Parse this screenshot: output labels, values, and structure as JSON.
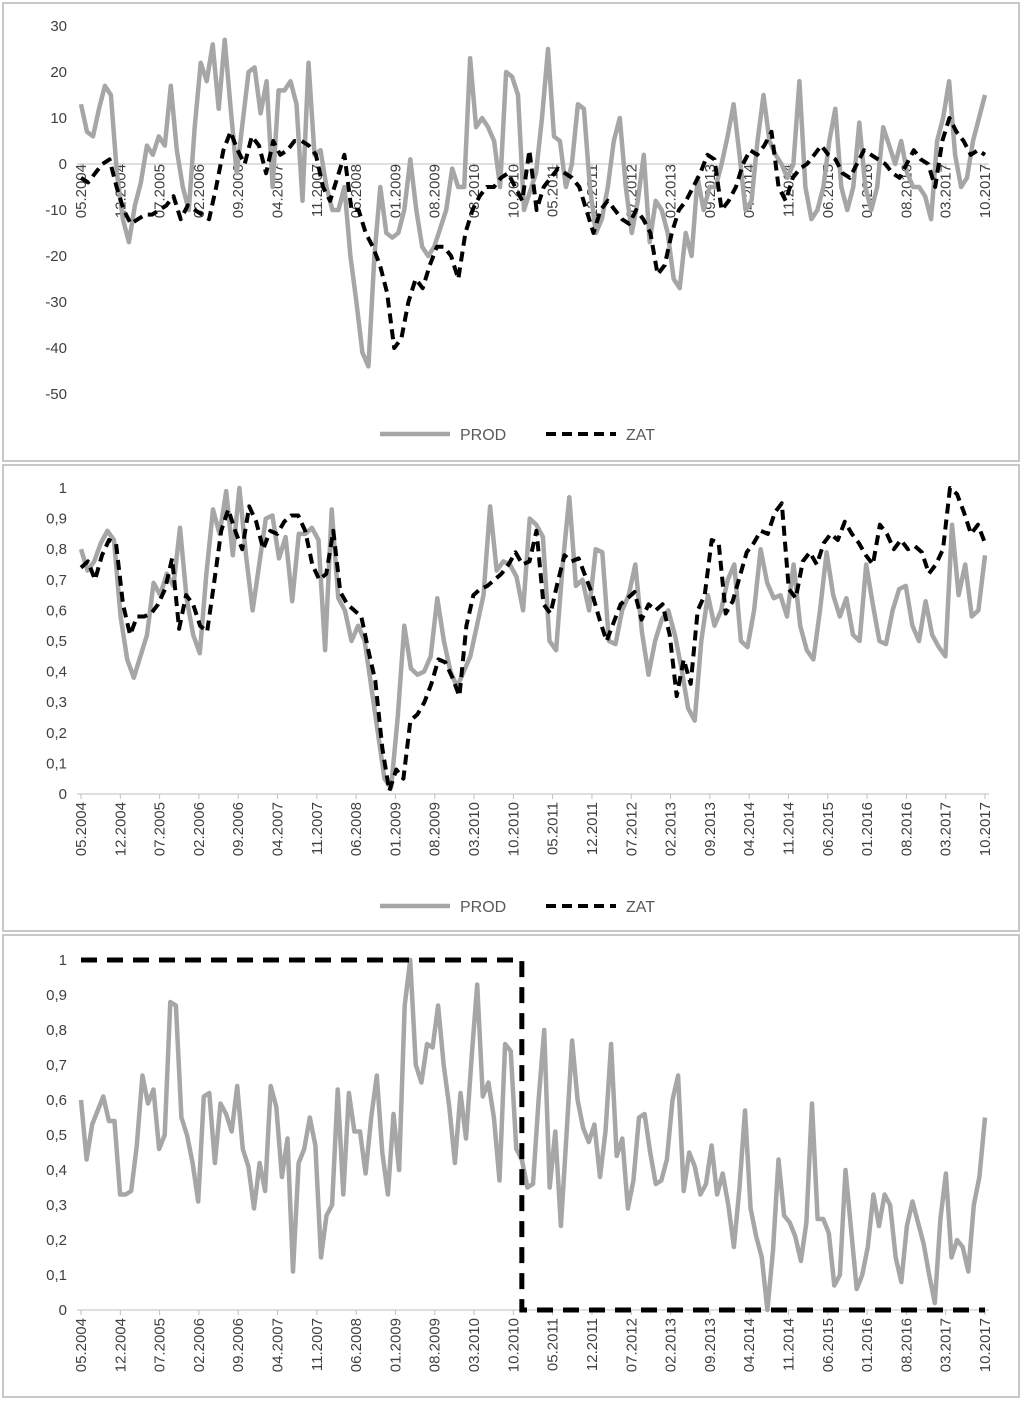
{
  "chart_data": [
    {
      "type": "line",
      "title": "",
      "xlabel": "",
      "ylabel": "",
      "ylim": [
        -50,
        30
      ],
      "yticks": [
        "30",
        "20",
        "10",
        "0",
        "-10",
        "-20",
        "-30",
        "-40",
        "-50"
      ],
      "yvalues": [
        30,
        20,
        10,
        0,
        -10,
        -20,
        -30,
        -40,
        -50
      ],
      "xticks": [
        "05.2004",
        "12.2004",
        "07.2005",
        "02.2006",
        "09.2006",
        "04.2007",
        "11.2007",
        "06.2008",
        "01.2009",
        "08.2009",
        "03.2010",
        "10.2010",
        "05.2011",
        "12.2011",
        "07.2012",
        "02.2013",
        "09.2013",
        "04.2014",
        "11.2014",
        "06.2015",
        "01.2016",
        "08.2016",
        "03.2017",
        "10.2017"
      ],
      "legend": [
        "PROD",
        "ZAT"
      ],
      "legend_position": "bottom",
      "series": [
        {
          "name": "PROD",
          "values": [
            13,
            7,
            6,
            12,
            17,
            15,
            -2,
            -12,
            -17,
            -9,
            -4,
            4,
            2,
            6,
            4,
            17,
            3,
            -5,
            -10,
            8,
            22,
            18,
            26,
            12,
            27,
            12,
            -2,
            9,
            20,
            21,
            11,
            18,
            -5,
            16,
            16,
            18,
            13,
            -8,
            22,
            2,
            3,
            -5,
            -10,
            -10,
            -5,
            -20,
            -30,
            -41,
            -44,
            -20,
            -5,
            -15,
            -16,
            -15,
            -10,
            1,
            -10,
            -18,
            -20,
            -18,
            -14,
            -10,
            -1,
            -5,
            -5,
            23,
            8,
            10,
            8,
            5,
            -5,
            20,
            19,
            15,
            -10,
            -6,
            -2,
            10,
            25,
            6,
            5,
            -5,
            0,
            13,
            12,
            -5,
            -15,
            -12,
            -5,
            5,
            10,
            -5,
            -15,
            -8,
            2,
            -17,
            -8,
            -10,
            -15,
            -25,
            -27,
            -15,
            -20,
            -3,
            -10,
            -5,
            -5,
            0,
            6,
            13,
            2,
            -10,
            -8,
            5,
            15,
            5,
            2,
            0,
            -3,
            0,
            18,
            -5,
            -12,
            -10,
            -5,
            5,
            12,
            -5,
            -10,
            -5,
            9,
            -5,
            -10,
            -5,
            8,
            4,
            0,
            5,
            -2,
            -5,
            -5,
            -7,
            -12,
            5,
            10,
            18,
            2,
            -5,
            -3,
            5,
            10,
            15
          ]
        },
        {
          "name": "ZAT",
          "values": [
            -3,
            -4,
            -2,
            0,
            1,
            -5,
            -10,
            -13,
            -12,
            -11,
            -11,
            -10,
            -9,
            -7,
            -12,
            -9,
            -10,
            -11,
            -12,
            -5,
            3,
            7,
            3,
            0,
            6,
            4,
            -2,
            5,
            2,
            3,
            5,
            5,
            4,
            2,
            -5,
            -8,
            -3,
            2,
            -10,
            -10,
            -15,
            -18,
            -22,
            -28,
            -40,
            -38,
            -30,
            -25,
            -27,
            -22,
            -18,
            -18,
            -20,
            -25,
            -15,
            -10,
            -7,
            -5,
            -5,
            -3,
            -2,
            -5,
            -8,
            3,
            -10,
            -5,
            -3,
            -1,
            -2,
            -3,
            -5,
            -10,
            -15,
            -10,
            -8,
            -10,
            -12,
            -13,
            -10,
            -12,
            -15,
            -24,
            -22,
            -15,
            -10,
            -8,
            -5,
            -2,
            2,
            1,
            -10,
            -8,
            -5,
            0,
            3,
            2,
            4,
            7,
            -5,
            -8,
            -3,
            -1,
            0,
            2,
            4,
            2,
            1,
            -2,
            -3,
            0,
            3,
            2,
            1,
            0,
            -2,
            -3,
            0,
            3,
            1,
            0,
            -5,
            5,
            10,
            7,
            5,
            2,
            3,
            2
          ]
        }
      ]
    },
    {
      "type": "line",
      "title": "",
      "xlabel": "",
      "ylabel": "",
      "ylim": [
        0,
        1
      ],
      "yticks": [
        "1",
        "0,9",
        "0,8",
        "0,7",
        "0,6",
        "0,5",
        "0,4",
        "0,3",
        "0,2",
        "0,1",
        "0"
      ],
      "yvalues": [
        1,
        0.9,
        0.8,
        0.7,
        0.6,
        0.5,
        0.4,
        0.3,
        0.2,
        0.1,
        0
      ],
      "xticks": [
        "05.2004",
        "12.2004",
        "07.2005",
        "02.2006",
        "09.2006",
        "04.2007",
        "11.2007",
        "06.2008",
        "01.2009",
        "08.2009",
        "03.2010",
        "10.2010",
        "05.2011",
        "12.2011",
        "07.2012",
        "02.2013",
        "09.2013",
        "04.2014",
        "11.2014",
        "06.2015",
        "01.2016",
        "08.2016",
        "03.2017",
        "10.2017"
      ],
      "legend": [
        "PROD",
        "ZAT"
      ],
      "legend_position": "bottom",
      "series": [
        {
          "name": "PROD",
          "values": [
            0.8,
            0.73,
            0.76,
            0.82,
            0.86,
            0.83,
            0.58,
            0.44,
            0.38,
            0.45,
            0.52,
            0.69,
            0.65,
            0.72,
            0.68,
            0.87,
            0.64,
            0.52,
            0.46,
            0.72,
            0.93,
            0.85,
            0.99,
            0.78,
            1.0,
            0.78,
            0.6,
            0.75,
            0.9,
            0.91,
            0.77,
            0.84,
            0.63,
            0.85,
            0.85,
            0.87,
            0.83,
            0.47,
            0.93,
            0.64,
            0.6,
            0.5,
            0.55,
            0.5,
            0.35,
            0.2,
            0.05,
            0.02,
            0.25,
            0.55,
            0.41,
            0.39,
            0.4,
            0.45,
            0.64,
            0.5,
            0.4,
            0.35,
            0.4,
            0.45,
            0.55,
            0.65,
            0.94,
            0.73,
            0.76,
            0.75,
            0.71,
            0.6,
            0.9,
            0.88,
            0.84,
            0.5,
            0.47,
            0.75,
            0.97,
            0.68,
            0.7,
            0.6,
            0.8,
            0.79,
            0.5,
            0.49,
            0.6,
            0.65,
            0.75,
            0.53,
            0.39,
            0.5,
            0.57,
            0.6,
            0.52,
            0.41,
            0.28,
            0.24,
            0.5,
            0.65,
            0.55,
            0.6,
            0.7,
            0.75,
            0.5,
            0.48,
            0.6,
            0.8,
            0.69,
            0.64,
            0.65,
            0.58,
            0.75,
            0.55,
            0.47,
            0.44,
            0.6,
            0.79,
            0.65,
            0.58,
            0.64,
            0.52,
            0.5,
            0.75,
            0.62,
            0.5,
            0.49,
            0.6,
            0.67,
            0.68,
            0.55,
            0.5,
            0.63,
            0.52,
            0.48,
            0.45,
            0.88,
            0.65,
            0.75,
            0.58,
            0.6,
            0.78
          ]
        },
        {
          "name": "ZAT",
          "values": [
            0.74,
            0.76,
            0.7,
            0.78,
            0.83,
            0.82,
            0.62,
            0.52,
            0.58,
            0.58,
            0.59,
            0.62,
            0.67,
            0.77,
            0.54,
            0.65,
            0.62,
            0.55,
            0.53,
            0.69,
            0.86,
            0.93,
            0.86,
            0.8,
            0.94,
            0.89,
            0.8,
            0.86,
            0.85,
            0.89,
            0.91,
            0.91,
            0.86,
            0.75,
            0.7,
            0.72,
            0.86,
            0.66,
            0.62,
            0.6,
            0.58,
            0.47,
            0.37,
            0.15,
            0.01,
            0.08,
            0.05,
            0.24,
            0.26,
            0.3,
            0.36,
            0.44,
            0.43,
            0.38,
            0.32,
            0.55,
            0.65,
            0.67,
            0.68,
            0.7,
            0.72,
            0.75,
            0.79,
            0.75,
            0.76,
            0.86,
            0.62,
            0.59,
            0.69,
            0.78,
            0.76,
            0.77,
            0.71,
            0.65,
            0.57,
            0.5,
            0.56,
            0.62,
            0.64,
            0.66,
            0.57,
            0.62,
            0.6,
            0.62,
            0.52,
            0.32,
            0.44,
            0.36,
            0.6,
            0.65,
            0.83,
            0.82,
            0.59,
            0.63,
            0.71,
            0.79,
            0.82,
            0.86,
            0.85,
            0.92,
            0.95,
            0.67,
            0.64,
            0.76,
            0.79,
            0.75,
            0.82,
            0.85,
            0.83,
            0.89,
            0.85,
            0.82,
            0.78,
            0.75,
            0.88,
            0.85,
            0.8,
            0.83,
            0.8,
            0.81,
            0.79,
            0.72,
            0.75,
            0.8,
            1.0,
            0.98,
            0.92,
            0.85,
            0.88,
            0.82
          ]
        }
      ]
    },
    {
      "type": "line",
      "title": "",
      "xlabel": "",
      "ylabel": "",
      "ylim": [
        0,
        1
      ],
      "yticks": [
        "1",
        "0,9",
        "0,8",
        "0,7",
        "0,6",
        "0,5",
        "0,4",
        "0,3",
        "0,2",
        "0,1",
        "0"
      ],
      "yvalues": [
        1,
        0.9,
        0.8,
        0.7,
        0.6,
        0.5,
        0.4,
        0.3,
        0.2,
        0.1,
        0
      ],
      "xticks": [
        "05.2004",
        "12.2004",
        "07.2005",
        "02.2006",
        "09.2006",
        "04.2007",
        "11.2007",
        "06.2008",
        "01.2009",
        "08.2009",
        "03.2010",
        "10.2010",
        "05.2011",
        "12.2011",
        "07.2012",
        "02.2013",
        "09.2013",
        "04.2014",
        "11.2014",
        "06.2015",
        "01.2016",
        "08.2016",
        "03.2017",
        "10.2017"
      ],
      "series": [
        {
          "name": "",
          "style": "solid-gray",
          "values": [
            0.6,
            0.43,
            0.53,
            0.57,
            0.61,
            0.54,
            0.54,
            0.33,
            0.33,
            0.34,
            0.47,
            0.67,
            0.59,
            0.63,
            0.46,
            0.5,
            0.88,
            0.87,
            0.55,
            0.5,
            0.42,
            0.31,
            0.61,
            0.62,
            0.42,
            0.59,
            0.56,
            0.51,
            0.64,
            0.46,
            0.41,
            0.29,
            0.42,
            0.34,
            0.64,
            0.58,
            0.38,
            0.49,
            0.11,
            0.42,
            0.46,
            0.55,
            0.47,
            0.15,
            0.27,
            0.3,
            0.63,
            0.33,
            0.62,
            0.51,
            0.51,
            0.39,
            0.55,
            0.67,
            0.45,
            0.33,
            0.56,
            0.4,
            0.87,
            1.0,
            0.7,
            0.65,
            0.76,
            0.75,
            0.87,
            0.7,
            0.58,
            0.42,
            0.62,
            0.49,
            0.72,
            0.93,
            0.61,
            0.65,
            0.55,
            0.37,
            0.76,
            0.74,
            0.46,
            0.43,
            0.35,
            0.36,
            0.6,
            0.8,
            0.35,
            0.51,
            0.24,
            0.5,
            0.77,
            0.6,
            0.52,
            0.48,
            0.53,
            0.38,
            0.51,
            0.76,
            0.44,
            0.49,
            0.29,
            0.37,
            0.55,
            0.56,
            0.45,
            0.36,
            0.37,
            0.43,
            0.6,
            0.67,
            0.34,
            0.45,
            0.41,
            0.33,
            0.36,
            0.47,
            0.33,
            0.39,
            0.3,
            0.18,
            0.35,
            0.57,
            0.29,
            0.21,
            0.15,
            0.0,
            0.17,
            0.43,
            0.27,
            0.25,
            0.21,
            0.14,
            0.25,
            0.59,
            0.26,
            0.26,
            0.22,
            0.07,
            0.1,
            0.4,
            0.23,
            0.06,
            0.1,
            0.18,
            0.33,
            0.24,
            0.33,
            0.3,
            0.15,
            0.08,
            0.24,
            0.31,
            0.25,
            0.19,
            0.1,
            0.02,
            0.26,
            0.39,
            0.15,
            0.2,
            0.18,
            0.11,
            0.3,
            0.38,
            0.55
          ]
        },
        {
          "name": "",
          "style": "dashed-black",
          "step": true,
          "breakpoint_index": 79,
          "levels": [
            1,
            0
          ]
        }
      ]
    }
  ]
}
